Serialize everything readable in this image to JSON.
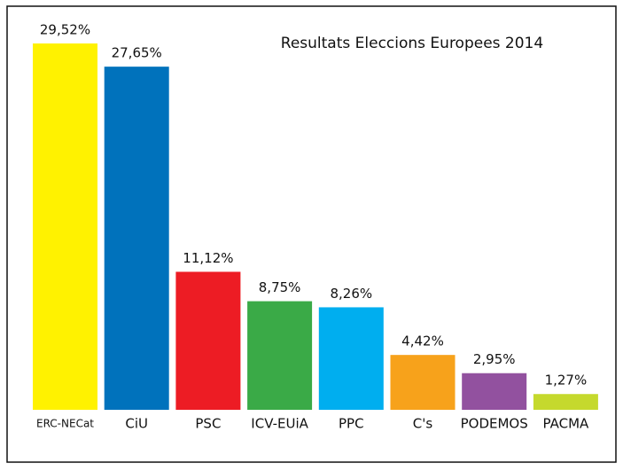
{
  "chart_data": {
    "type": "bar",
    "title": "Resultats Eleccions Europees 2014",
    "categories": [
      "ERC-NECat",
      "CiU",
      "PSC",
      "ICV-EUiA",
      "PPC",
      "C's",
      "PODEMOS",
      "PACMA"
    ],
    "values": [
      29.52,
      27.65,
      11.12,
      8.75,
      8.26,
      4.42,
      2.95,
      1.27
    ],
    "value_labels": [
      "29,52%",
      "27,65%",
      "11,12%",
      "8,75%",
      "8,26%",
      "4,42%",
      "2,95%",
      "1,27%"
    ],
    "colors": [
      "#fff200",
      "#0072bc",
      "#ed1c24",
      "#3aaa47",
      "#00aeef",
      "#f7a21b",
      "#92519f",
      "#c5d92d"
    ]
  }
}
